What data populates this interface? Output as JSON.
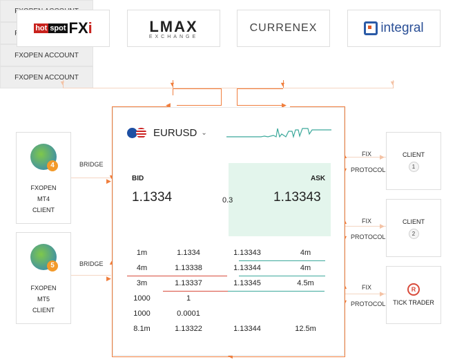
{
  "providers": [
    {
      "name": "hotspot FXi",
      "account": "FXOPEN ACCOUNT"
    },
    {
      "name": "LMAX",
      "sub": "EXCHANGE",
      "account": "FXOPEN ACCOUNT"
    },
    {
      "name": "CURRENEX",
      "account": "FXOPEN ACCOUNT"
    },
    {
      "name": "integral",
      "account": "FXOPEN ACCOUNT"
    }
  ],
  "hotspot": {
    "a": "hot",
    "b": "spot",
    "c": "FX",
    "d": "i"
  },
  "left_clients": [
    {
      "line1": "FXOPEN",
      "line2": "MT4",
      "line3": "CLIENT",
      "icon_num": "4",
      "link": "BRIDGE"
    },
    {
      "line1": "FXOPEN",
      "line2": "MT5",
      "line3": "CLIENT",
      "icon_num": "5",
      "link": "BRIDGE"
    }
  ],
  "right_clients": [
    {
      "label": "CLIENT",
      "badge": "1",
      "fix": "FIX",
      "protocol": "PROTOCOL"
    },
    {
      "label": "CLIENT",
      "badge": "2",
      "fix": "FIX",
      "protocol": "PROTOCOL"
    },
    {
      "label": "TICK TRADER",
      "fix": "FIX",
      "protocol": "PROTOCOL"
    }
  ],
  "quote": {
    "symbol": "EURUSD",
    "bid_label": "BID",
    "ask_label": "ASK",
    "bid": "1.1334",
    "ask": "1.13343",
    "spread": "0.3"
  },
  "orderbook": [
    {
      "bid_vol": "1m",
      "bid": "1.1334",
      "ask": "1.13343",
      "ask_vol": "4m"
    },
    {
      "bid_vol": "4m",
      "bid": "1.13338",
      "ask": "1.13344",
      "ask_vol": "4m"
    },
    {
      "bid_vol": "3m",
      "bid": "1.13337",
      "ask": "1.13345",
      "ask_vol": "4.5m"
    },
    {
      "bid_vol": "1000",
      "bid": "1",
      "ask": "",
      "ask_vol": ""
    },
    {
      "bid_vol": "1000",
      "bid": "0.0001",
      "ask": "",
      "ask_vol": ""
    },
    {
      "bid_vol": "8.1m",
      "bid": "1.13322",
      "ask": "1.13344",
      "ask_vol": "12.5m"
    }
  ],
  "colors": {
    "accent": "#f07e3d",
    "ask_bg": "#e3f5ec",
    "teal": "#3aa89a",
    "red": "#d84a3a"
  }
}
